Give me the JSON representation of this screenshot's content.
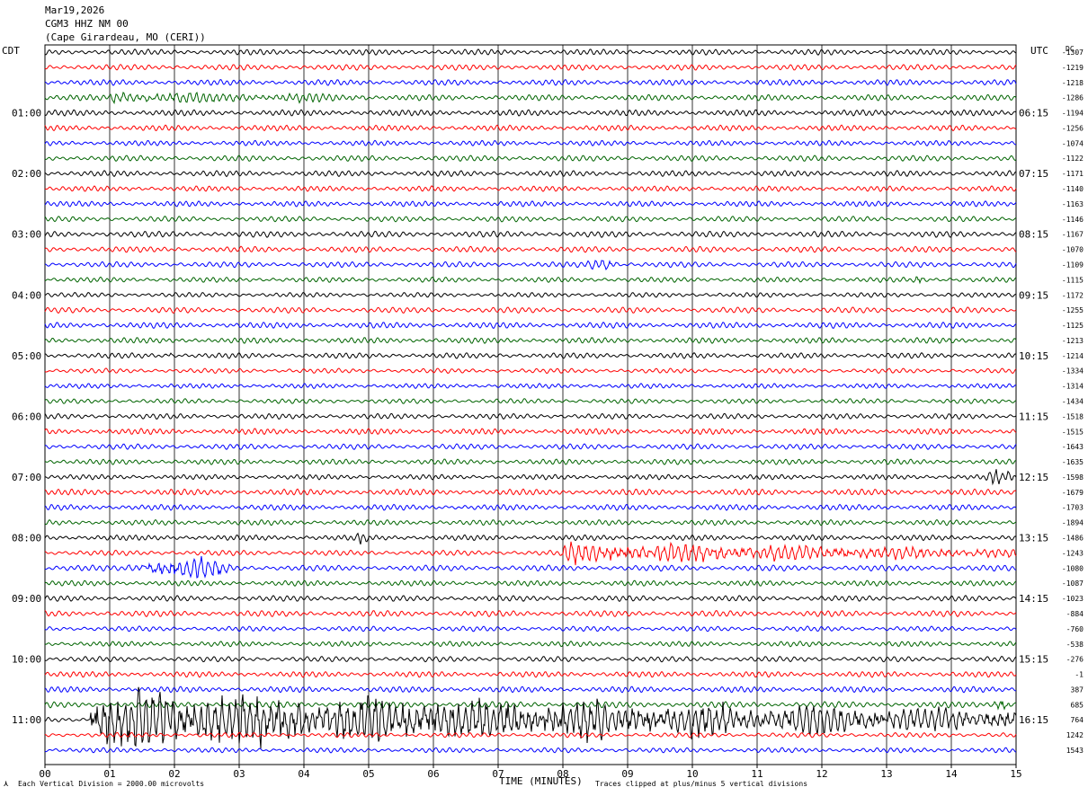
{
  "header": {
    "date": "Mar19,2026",
    "station": "CGM3 HHZ NM 00",
    "location": "(Cape Girardeau, MO (CERI))"
  },
  "left_tz": "CDT",
  "right_tz": "UTC",
  "right_col_title": "DC",
  "left_times": [
    "01:00",
    "02:00",
    "03:00",
    "04:00",
    "05:00",
    "06:00",
    "07:00",
    "08:00",
    "09:00",
    "10:00",
    "11:00"
  ],
  "right_times": [
    "06:15",
    "07:15",
    "08:15",
    "09:15",
    "10:15",
    "11:15",
    "12:15",
    "13:15",
    "14:15",
    "15:15",
    "16:15"
  ],
  "dc_offsets": [
    "-1307",
    "-1219",
    "-1218",
    "-1286",
    "-1194",
    "-1256",
    "-1074",
    "-1122",
    "-1171",
    "-1140",
    "-1163",
    "-1146",
    "-1167",
    "-1070",
    "-1109",
    "-1115",
    "-1172",
    "-1255",
    "-1125",
    "-1213",
    "-1214",
    "-1334",
    "-1314",
    "-1434",
    "-1518",
    "-1515",
    "-1643",
    "-1635",
    "-1598",
    "-1679",
    "-1703",
    "-1894",
    "-1486",
    "-1243",
    "-1080",
    "-1087",
    "-1023",
    "-884",
    "-760",
    "-538",
    "-276",
    "-1",
    "387",
    "685",
    "764",
    "1242",
    "1543"
  ],
  "x_ticks": [
    "00",
    "01",
    "02",
    "03",
    "04",
    "05",
    "06",
    "07",
    "08",
    "09",
    "10",
    "11",
    "12",
    "13",
    "14",
    "15"
  ],
  "xlabel": "TIME (MINUTES)",
  "footer_left": "Each Vertical Division = 2000.00 microvolts",
  "footer_right": "Traces clipped at plus/minus 5 vertical divisions",
  "colors": [
    "#000000",
    "#ff0000",
    "#0000ff",
    "#006400"
  ],
  "chart_data": {
    "type": "line",
    "title": "CGM3 HHZ NM 00",
    "xlabel": "TIME (MINUTES)",
    "xlim": [
      0,
      15
    ],
    "trace_count": 47,
    "trace_minutes": 15,
    "events": [
      {
        "trace": 3,
        "x_min": 1.0,
        "x_max": 5.0,
        "amp": 1.4
      },
      {
        "trace": 14,
        "x_min": 8.3,
        "x_max": 8.9,
        "amp": 1.5
      },
      {
        "trace": 15,
        "x_min": 13.4,
        "x_max": 13.6,
        "amp": 1.6
      },
      {
        "trace": 20,
        "x_min": 1.9,
        "x_max": 2.0,
        "amp": 1.6
      },
      {
        "trace": 28,
        "x_min": 14.5,
        "x_max": 15.0,
        "amp": 2.0
      },
      {
        "trace": 32,
        "x_min": 4.8,
        "x_max": 5.0,
        "amp": 1.6
      },
      {
        "trace": 33,
        "x_min": 8.0,
        "x_max": 15.0,
        "amp": 3.0
      },
      {
        "trace": 34,
        "x_min": 1.2,
        "x_max": 3.0,
        "amp": 3.5
      },
      {
        "trace": 43,
        "x_min": 14.6,
        "x_max": 15.0,
        "amp": 2.0
      },
      {
        "trace": 44,
        "x_min": 0.7,
        "x_max": 15.0,
        "amp": 9.0
      }
    ]
  }
}
